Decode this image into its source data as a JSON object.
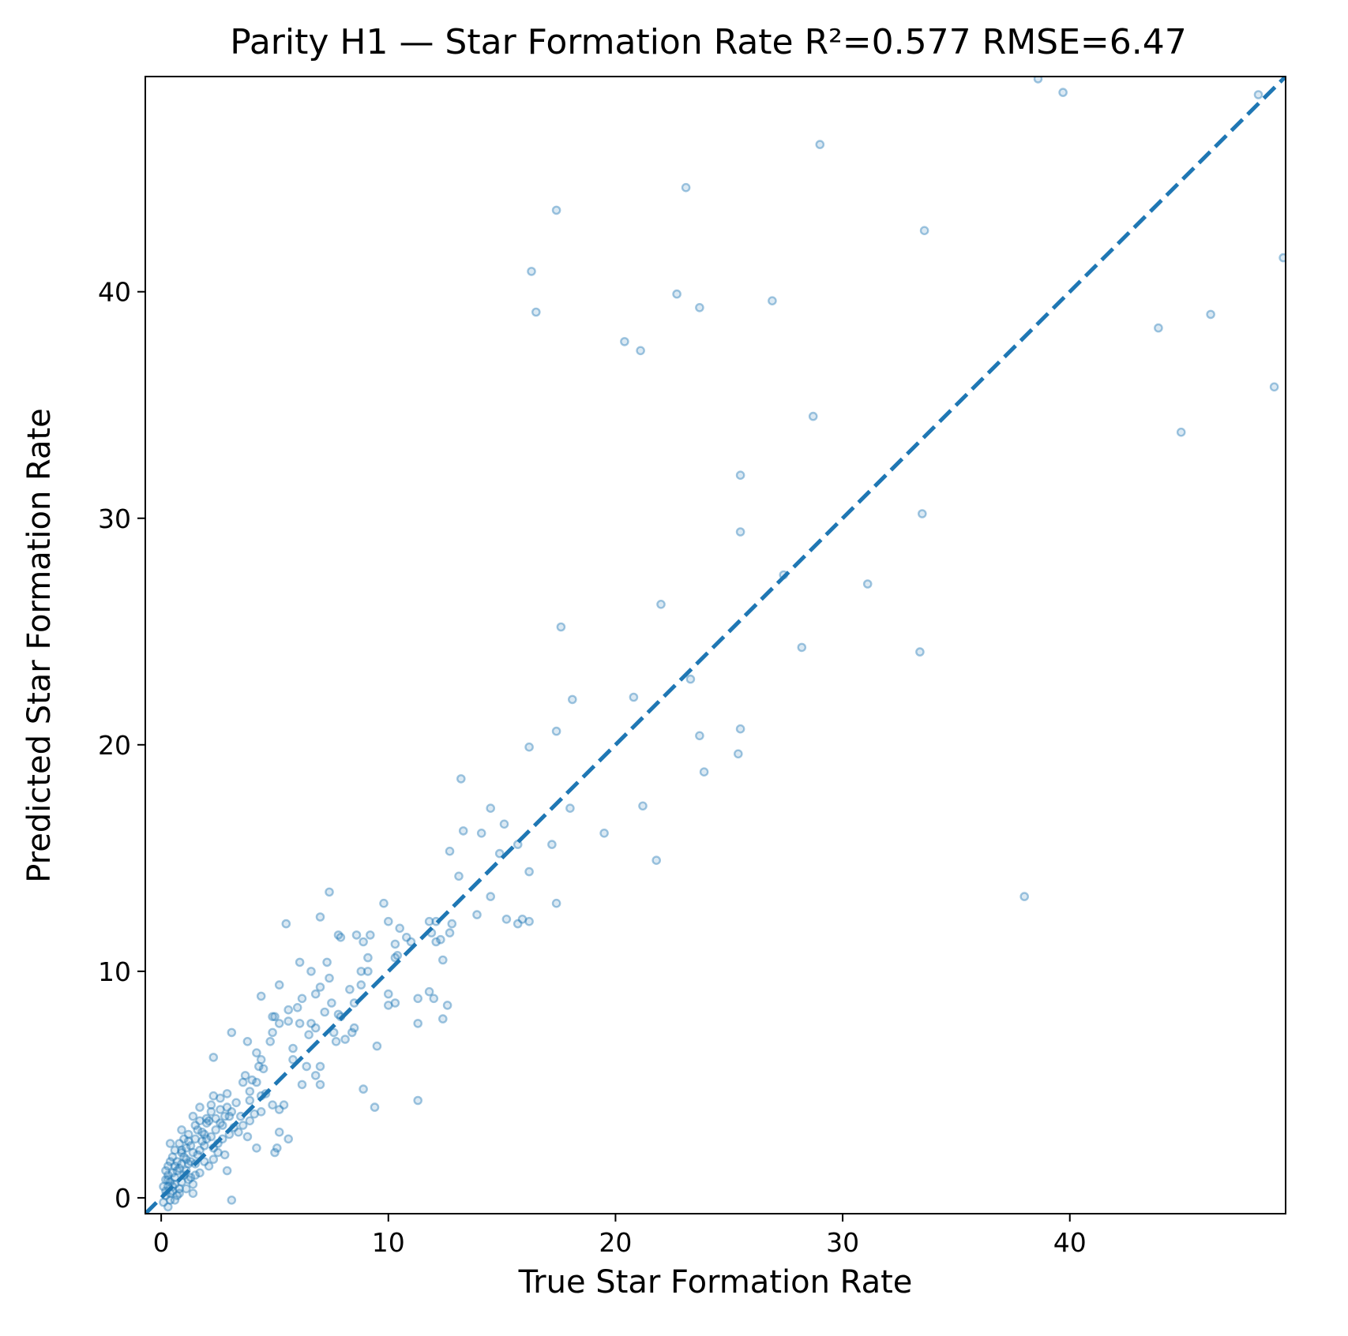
{
  "chart_data": {
    "type": "scatter",
    "title": "Parity H1 — Star Formation Rate   R²=0.577   RMSE=6.47",
    "xlabel": "True Star Formation Rate",
    "ylabel": "Predicted Star Formation Rate",
    "xlim": [
      -0.7,
      49.5
    ],
    "ylim": [
      -0.7,
      49.5
    ],
    "xticks": [
      0,
      10,
      20,
      30,
      40
    ],
    "yticks": [
      0,
      10,
      20,
      30,
      40
    ],
    "grid": false,
    "colors": {
      "points": "#1f77b4",
      "line": "#1f77b4"
    },
    "reference_line": {
      "style": "dashed",
      "x": [
        -0.7,
        49.5
      ],
      "y": [
        -0.7,
        49.5
      ]
    },
    "series": [
      {
        "points": [
          [
            38.6,
            49.4
          ],
          [
            39.7,
            48.8
          ],
          [
            48.3,
            48.7
          ],
          [
            29.0,
            46.5
          ],
          [
            23.1,
            44.6
          ],
          [
            17.4,
            43.6
          ],
          [
            33.6,
            42.7
          ],
          [
            49.4,
            41.5
          ],
          [
            16.3,
            40.9
          ],
          [
            22.7,
            39.9
          ],
          [
            26.9,
            39.6
          ],
          [
            16.5,
            39.1
          ],
          [
            23.7,
            39.3
          ],
          [
            46.2,
            39.0
          ],
          [
            43.9,
            38.4
          ],
          [
            20.4,
            37.8
          ],
          [
            21.1,
            37.4
          ],
          [
            49.0,
            35.8
          ],
          [
            28.7,
            34.5
          ],
          [
            44.9,
            33.8
          ],
          [
            25.5,
            31.9
          ],
          [
            33.5,
            30.2
          ],
          [
            25.5,
            29.4
          ],
          [
            27.4,
            27.5
          ],
          [
            31.1,
            27.1
          ],
          [
            22.0,
            26.2
          ],
          [
            17.6,
            25.2
          ],
          [
            28.2,
            24.3
          ],
          [
            33.4,
            24.1
          ],
          [
            23.3,
            22.9
          ],
          [
            20.8,
            22.1
          ],
          [
            18.1,
            22.0
          ],
          [
            25.5,
            20.7
          ],
          [
            17.4,
            20.6
          ],
          [
            23.7,
            20.4
          ],
          [
            16.2,
            19.9
          ],
          [
            25.4,
            19.6
          ],
          [
            23.9,
            18.8
          ],
          [
            13.2,
            18.5
          ],
          [
            21.2,
            17.3
          ],
          [
            14.5,
            17.2
          ],
          [
            18.0,
            17.2
          ],
          [
            13.3,
            16.2
          ],
          [
            14.1,
            16.1
          ],
          [
            19.5,
            16.1
          ],
          [
            15.1,
            16.5
          ],
          [
            17.2,
            15.6
          ],
          [
            15.7,
            15.6
          ],
          [
            12.7,
            15.3
          ],
          [
            14.9,
            15.2
          ],
          [
            21.8,
            14.9
          ],
          [
            16.2,
            14.4
          ],
          [
            13.1,
            14.2
          ],
          [
            14.5,
            13.3
          ],
          [
            38.0,
            13.3
          ],
          [
            17.4,
            13.0
          ],
          [
            7.4,
            13.5
          ],
          [
            9.8,
            13.0
          ],
          [
            13.9,
            12.5
          ],
          [
            7.0,
            12.4
          ],
          [
            10.0,
            12.2
          ],
          [
            15.2,
            12.3
          ],
          [
            16.2,
            12.2
          ],
          [
            15.9,
            12.3
          ],
          [
            15.7,
            12.1
          ],
          [
            11.8,
            12.2
          ],
          [
            5.5,
            12.1
          ],
          [
            10.5,
            11.9
          ],
          [
            12.8,
            12.1
          ],
          [
            12.7,
            11.7
          ],
          [
            10.8,
            11.5
          ],
          [
            12.3,
            11.4
          ],
          [
            9.2,
            11.6
          ],
          [
            7.8,
            11.6
          ],
          [
            8.6,
            11.6
          ],
          [
            11.9,
            11.7
          ],
          [
            7.9,
            11.5
          ],
          [
            8.9,
            11.3
          ],
          [
            10.3,
            11.2
          ],
          [
            12.1,
            11.3
          ],
          [
            12.4,
            10.5
          ],
          [
            9.1,
            10.6
          ],
          [
            6.1,
            10.4
          ],
          [
            7.3,
            10.4
          ],
          [
            6.6,
            10.0
          ],
          [
            8.8,
            10.0
          ],
          [
            10.3,
            10.6
          ],
          [
            7.4,
            9.7
          ],
          [
            5.2,
            9.4
          ],
          [
            7.0,
            9.3
          ],
          [
            8.3,
            9.2
          ],
          [
            11.8,
            9.1
          ],
          [
            8.8,
            9.4
          ],
          [
            10.0,
            9.0
          ],
          [
            6.8,
            9.0
          ],
          [
            4.4,
            8.9
          ],
          [
            6.2,
            8.8
          ],
          [
            11.3,
            8.8
          ],
          [
            12.0,
            8.8
          ],
          [
            8.5,
            8.6
          ],
          [
            7.5,
            8.6
          ],
          [
            10.3,
            8.6
          ],
          [
            12.6,
            8.5
          ],
          [
            10.0,
            8.5
          ],
          [
            6.0,
            8.4
          ],
          [
            5.6,
            8.3
          ],
          [
            7.2,
            8.2
          ],
          [
            4.9,
            8.0
          ],
          [
            5.0,
            8.0
          ],
          [
            7.9,
            8.0
          ],
          [
            5.2,
            7.7
          ],
          [
            6.1,
            7.7
          ],
          [
            6.6,
            7.7
          ],
          [
            6.8,
            7.5
          ],
          [
            11.3,
            7.7
          ],
          [
            12.4,
            7.9
          ],
          [
            8.5,
            7.5
          ],
          [
            7.6,
            7.3
          ],
          [
            3.1,
            7.3
          ],
          [
            4.9,
            7.3
          ],
          [
            8.4,
            7.3
          ],
          [
            8.1,
            7.0
          ],
          [
            7.7,
            6.9
          ],
          [
            9.5,
            6.7
          ],
          [
            5.8,
            6.6
          ],
          [
            4.2,
            6.4
          ],
          [
            3.8,
            6.9
          ],
          [
            4.8,
            6.9
          ],
          [
            2.3,
            6.2
          ],
          [
            4.4,
            6.1
          ],
          [
            7.0,
            5.8
          ],
          [
            4.5,
            5.7
          ],
          [
            6.4,
            5.8
          ],
          [
            6.8,
            5.4
          ],
          [
            3.6,
            5.1
          ],
          [
            6.2,
            5.0
          ],
          [
            7.0,
            5.0
          ],
          [
            4.2,
            5.1
          ],
          [
            8.9,
            4.8
          ],
          [
            4.4,
            4.5
          ],
          [
            2.9,
            4.6
          ],
          [
            3.9,
            4.3
          ],
          [
            5.4,
            4.1
          ],
          [
            2.3,
            4.5
          ],
          [
            11.3,
            4.3
          ],
          [
            9.4,
            4.0
          ],
          [
            4.9,
            4.1
          ],
          [
            5.2,
            3.9
          ],
          [
            1.7,
            4.0
          ],
          [
            3.1,
            3.8
          ],
          [
            4.4,
            3.8
          ],
          [
            2.8,
            3.6
          ],
          [
            3.5,
            3.6
          ],
          [
            2.0,
            3.5
          ],
          [
            1.4,
            3.6
          ],
          [
            3.9,
            3.4
          ],
          [
            0.9,
            3.0
          ],
          [
            2.6,
            3.3
          ],
          [
            5.2,
            2.9
          ],
          [
            3.8,
            2.7
          ],
          [
            5.6,
            2.6
          ],
          [
            1.9,
            2.8
          ],
          [
            2.5,
            2.4
          ],
          [
            1.2,
            2.5
          ],
          [
            0.4,
            2.4
          ],
          [
            4.2,
            2.2
          ],
          [
            5.0,
            2.0
          ],
          [
            5.1,
            2.2
          ],
          [
            0.9,
            2.1
          ],
          [
            1.7,
            2.1
          ],
          [
            2.8,
            1.9
          ],
          [
            1.0,
            1.8
          ],
          [
            2.3,
            1.7
          ],
          [
            0.7,
            1.6
          ],
          [
            1.5,
            1.5
          ],
          [
            2.1,
            1.4
          ],
          [
            0.3,
            1.4
          ],
          [
            1.1,
            1.2
          ],
          [
            2.9,
            1.2
          ],
          [
            1.7,
            1.1
          ],
          [
            0.5,
            1.1
          ],
          [
            1.3,
            0.9
          ],
          [
            0.2,
            0.8
          ],
          [
            0.9,
            0.7
          ],
          [
            1.4,
            0.6
          ],
          [
            0.6,
            0.6
          ],
          [
            0.3,
            0.5
          ],
          [
            1.1,
            0.4
          ],
          [
            0.5,
            0.3
          ],
          [
            1.4,
            0.2
          ],
          [
            0.8,
            0.2
          ],
          [
            0.2,
            0.1
          ],
          [
            0.4,
            -0.1
          ],
          [
            0.1,
            -0.2
          ],
          [
            0.6,
            -0.1
          ],
          [
            0.3,
            -0.4
          ],
          [
            3.1,
            -0.1
          ],
          [
            1.2,
            2.8
          ],
          [
            2.4,
            3.0
          ],
          [
            3.3,
            4.2
          ],
          [
            2.0,
            2.6
          ],
          [
            1.6,
            1.9
          ],
          [
            0.8,
            1.3
          ],
          [
            1.9,
            2.3
          ],
          [
            3.4,
            2.9
          ],
          [
            2.6,
            3.9
          ],
          [
            1.3,
            1.6
          ],
          [
            0.6,
            0.9
          ],
          [
            1.0,
            1.0
          ],
          [
            2.2,
            2.7
          ],
          [
            2.7,
            3.2
          ],
          [
            3.0,
            3.6
          ],
          [
            1.8,
            2.5
          ],
          [
            0.4,
            0.7
          ],
          [
            0.7,
            1.2
          ],
          [
            1.5,
            2.6
          ],
          [
            2.1,
            3.4
          ],
          [
            1.1,
            2.2
          ],
          [
            0.5,
            1.8
          ],
          [
            0.9,
            2.0
          ],
          [
            1.6,
            3.0
          ],
          [
            2.4,
            3.5
          ],
          [
            2.9,
            4.0
          ],
          [
            0.2,
            0.3
          ],
          [
            0.3,
            1.0
          ],
          [
            0.6,
            1.4
          ],
          [
            1.2,
            1.5
          ],
          [
            1.8,
            2.9
          ],
          [
            2.5,
            2.0
          ],
          [
            3.6,
            3.2
          ],
          [
            4.1,
            3.7
          ],
          [
            0.8,
            0.4
          ],
          [
            1.3,
            2.3
          ],
          [
            0.4,
            1.6
          ],
          [
            0.1,
            0.5
          ],
          [
            0.7,
            0.1
          ],
          [
            1.0,
            2.6
          ],
          [
            1.9,
            1.6
          ],
          [
            2.2,
            3.8
          ],
          [
            3.2,
            3.1
          ],
          [
            0.5,
            0.5
          ],
          [
            0.3,
            0.8
          ],
          [
            1.4,
            2.0
          ],
          [
            0.9,
            1.5
          ],
          [
            2.0,
            3.3
          ],
          [
            2.7,
            2.6
          ],
          [
            1.7,
            3.4
          ],
          [
            0.6,
            2.1
          ],
          [
            1.1,
            1.7
          ],
          [
            0.2,
            1.2
          ],
          [
            0.8,
            2.4
          ],
          [
            1.5,
            1.0
          ],
          [
            2.3,
            2.2
          ],
          [
            3.0,
            2.8
          ],
          [
            1.2,
            0.8
          ],
          [
            0.4,
            0.2
          ],
          [
            4.6,
            4.6
          ],
          [
            3.7,
            5.4
          ],
          [
            4.0,
            5.2
          ],
          [
            5.8,
            6.1
          ],
          [
            6.5,
            7.2
          ],
          [
            7.8,
            8.1
          ],
          [
            9.1,
            10.0
          ],
          [
            10.4,
            10.7
          ],
          [
            11.0,
            11.3
          ],
          [
            12.1,
            12.2
          ],
          [
            2.6,
            4.4
          ],
          [
            3.9,
            4.7
          ],
          [
            4.3,
            5.8
          ],
          [
            5.6,
            7.8
          ],
          [
            1.5,
            3.2
          ],
          [
            2.2,
            4.1
          ]
        ]
      }
    ]
  }
}
